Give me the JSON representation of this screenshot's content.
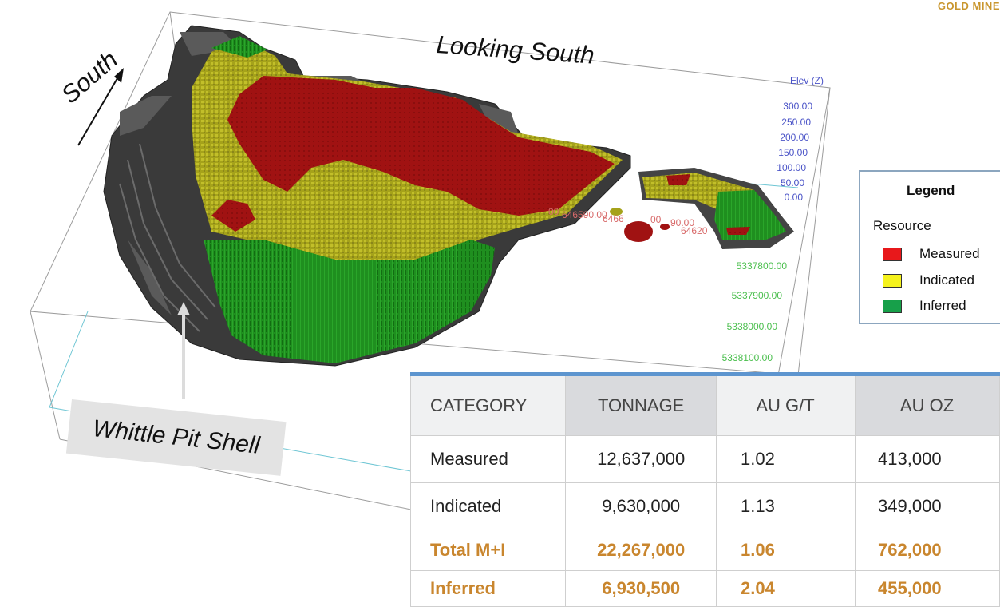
{
  "brand": {
    "text": "GOLD MINE"
  },
  "scene": {
    "view_label": "Looking South",
    "north_arrow_label": "South",
    "pit_shell_label": "Whittle Pit Shell",
    "z_axis_title": "Elev (Z)",
    "z_ticks": [
      "300.00",
      "250.00",
      "200.00",
      "150.00",
      "100.00",
      "50.00",
      "0.00"
    ],
    "y_ticks": [
      "5337800.00",
      "5337900.00",
      "5338000.00",
      "5338100.00"
    ],
    "x_ticks": [
      "00",
      "646590.00",
      "6466",
      "00",
      "90.00",
      "64620"
    ],
    "colors": {
      "measured": "#a01212",
      "indicated": "#a5a21a",
      "inferred": "#1f8f1f",
      "pit_shell": "#3a3a3a"
    }
  },
  "legend": {
    "title": "Legend",
    "subtitle": "Resource",
    "items": [
      {
        "label": "Measured",
        "color": "#e8181b"
      },
      {
        "label": "Indicated",
        "color": "#f5f21c"
      },
      {
        "label": "Inferred",
        "color": "#17a04a"
      }
    ]
  },
  "table": {
    "headers": [
      "CATEGORY",
      "TONNAGE",
      "AU G/T",
      "AU OZ"
    ],
    "rows": [
      [
        "Measured",
        "12,637,000",
        "1.02",
        "413,000"
      ],
      [
        "Indicated",
        "9,630,000",
        "1.13",
        "349,000"
      ],
      [
        "Total M+I",
        "22,267,000",
        "1.06",
        "762,000"
      ],
      [
        "Inferred",
        "6,930,500",
        "2.04",
        "455,000"
      ]
    ],
    "highlight_color": "#c9862e"
  }
}
